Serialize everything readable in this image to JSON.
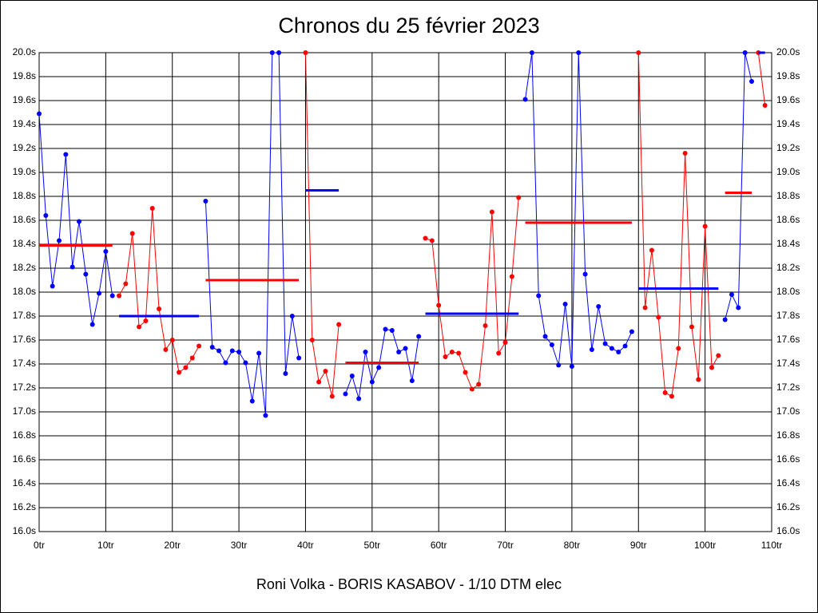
{
  "chart_data": {
    "type": "line",
    "title": "Chronos du 25 février 2023",
    "xlabel": "Roni Volka - BORIS KASABOV - 1/10 DTM elec",
    "xlim": [
      0,
      110
    ],
    "xticks": [
      {
        "value": 0,
        "label": "0tr"
      },
      {
        "value": 10,
        "label": "10tr"
      },
      {
        "value": 20,
        "label": "20tr"
      },
      {
        "value": 30,
        "label": "30tr"
      },
      {
        "value": 40,
        "label": "40tr"
      },
      {
        "value": 50,
        "label": "50tr"
      },
      {
        "value": 60,
        "label": "60tr"
      },
      {
        "value": 70,
        "label": "70tr"
      },
      {
        "value": 80,
        "label": "80tr"
      },
      {
        "value": 90,
        "label": "90tr"
      },
      {
        "value": 100,
        "label": "100tr"
      },
      {
        "value": 110,
        "label": "110tr"
      }
    ],
    "ylim": [
      16.0,
      20.0
    ],
    "yticks": [
      {
        "value": 16.0,
        "label": "16.0s"
      },
      {
        "value": 16.2,
        "label": "16.2s"
      },
      {
        "value": 16.4,
        "label": "16.4s"
      },
      {
        "value": 16.6,
        "label": "16.6s"
      },
      {
        "value": 16.8,
        "label": "16.8s"
      },
      {
        "value": 17.0,
        "label": "17.0s"
      },
      {
        "value": 17.2,
        "label": "17.2s"
      },
      {
        "value": 17.4,
        "label": "17.4s"
      },
      {
        "value": 17.6,
        "label": "17.6s"
      },
      {
        "value": 17.8,
        "label": "17.8s"
      },
      {
        "value": 18.0,
        "label": "18.0s"
      },
      {
        "value": 18.2,
        "label": "18.2s"
      },
      {
        "value": 18.4,
        "label": "18.4s"
      },
      {
        "value": 18.6,
        "label": "18.6s"
      },
      {
        "value": 18.8,
        "label": "18.8s"
      },
      {
        "value": 19.0,
        "label": "19.0s"
      },
      {
        "value": 19.2,
        "label": "19.2s"
      },
      {
        "value": 19.4,
        "label": "19.4s"
      },
      {
        "value": 19.6,
        "label": "19.6s"
      },
      {
        "value": 19.8,
        "label": "19.8s"
      },
      {
        "value": 20.0,
        "label": "20.0s"
      }
    ],
    "grid": true,
    "series": [
      {
        "color": "#0000ff",
        "x": [
          0,
          1,
          2,
          3,
          4,
          5,
          6,
          7,
          8,
          9,
          10,
          11
        ],
        "values": [
          19.49,
          18.64,
          18.05,
          18.43,
          19.15,
          18.21,
          18.59,
          18.15,
          17.73,
          17.99,
          18.34,
          17.97
        ]
      },
      {
        "color": "#ff0000",
        "x": [
          12,
          13,
          14,
          15,
          16,
          17,
          18,
          19,
          20,
          21,
          22,
          23,
          24
        ],
        "values": [
          17.97,
          18.07,
          18.49,
          17.71,
          17.76,
          18.7,
          17.86,
          17.52,
          17.6,
          17.33,
          17.37,
          17.45,
          17.55
        ]
      },
      {
        "color": "#0000ff",
        "x": [
          25,
          26,
          27,
          28,
          29,
          30,
          31,
          32,
          33,
          34,
          35,
          36,
          37,
          38,
          39
        ],
        "values": [
          18.76,
          17.54,
          17.51,
          17.41,
          17.51,
          17.5,
          17.41,
          17.09,
          17.49,
          16.97,
          20.0,
          20.0,
          17.32,
          17.8,
          17.45
        ]
      },
      {
        "color": "#ff0000",
        "x": [
          40,
          41,
          42,
          43,
          44,
          45
        ],
        "values": [
          20.0,
          17.6,
          17.25,
          17.34,
          17.13,
          17.73
        ]
      },
      {
        "color": "#0000ff",
        "x": [
          46,
          47,
          48,
          49,
          50,
          51,
          52,
          53,
          54,
          55,
          56,
          57
        ],
        "values": [
          17.15,
          17.3,
          17.11,
          17.5,
          17.25,
          17.37,
          17.69,
          17.68,
          17.5,
          17.53,
          17.26,
          17.63
        ]
      },
      {
        "color": "#ff0000",
        "x": [
          58,
          59,
          60,
          61,
          62,
          63,
          64,
          65,
          66,
          67,
          68,
          69,
          70,
          71,
          72
        ],
        "values": [
          18.45,
          18.43,
          17.89,
          17.46,
          17.5,
          17.49,
          17.33,
          17.19,
          17.23,
          17.72,
          18.67,
          17.49,
          17.58,
          18.13,
          18.79
        ]
      },
      {
        "color": "#0000ff",
        "x": [
          73,
          74,
          75,
          76,
          77,
          78,
          79,
          80,
          81,
          82,
          83,
          84,
          85,
          86,
          87,
          88,
          89
        ],
        "values": [
          19.61,
          20.0,
          17.97,
          17.63,
          17.56,
          17.39,
          17.9,
          17.38,
          20.0,
          18.15,
          17.52,
          17.88,
          17.57,
          17.53,
          17.5,
          17.55,
          17.67
        ]
      },
      {
        "color": "#ff0000",
        "x": [
          90,
          91,
          92,
          93,
          94,
          95,
          96,
          97,
          98,
          99,
          100,
          101,
          102
        ],
        "values": [
          20.0,
          17.87,
          18.35,
          17.79,
          17.16,
          17.13,
          17.53,
          19.16,
          17.71,
          17.27,
          18.55,
          17.37,
          17.47
        ]
      },
      {
        "color": "#0000ff",
        "x": [
          103,
          104,
          105,
          106,
          107
        ],
        "values": [
          17.77,
          17.98,
          17.87,
          20.0,
          19.76
        ]
      },
      {
        "color": "#ff0000",
        "x": [
          108,
          109
        ],
        "values": [
          20.0,
          19.56
        ]
      }
    ],
    "averages": [
      {
        "color": "#ff0000",
        "x": [
          0,
          11
        ],
        "value": 18.39
      },
      {
        "color": "#0000ff",
        "x": [
          12,
          24
        ],
        "value": 17.8
      },
      {
        "color": "#ff0000",
        "x": [
          25,
          39
        ],
        "value": 18.1
      },
      {
        "color": "#0000ff",
        "x": [
          40,
          45
        ],
        "value": 18.85
      },
      {
        "color": "#ff0000",
        "x": [
          46,
          57
        ],
        "value": 17.41
      },
      {
        "color": "#0000ff",
        "x": [
          58,
          72
        ],
        "value": 17.82
      },
      {
        "color": "#ff0000",
        "x": [
          73,
          89
        ],
        "value": 18.58
      },
      {
        "color": "#0000ff",
        "x": [
          90,
          102
        ],
        "value": 18.03
      },
      {
        "color": "#ff0000",
        "x": [
          103,
          107
        ],
        "value": 18.83
      },
      {
        "color": "#0000ff",
        "x": [
          108,
          109
        ],
        "value": 20.0
      }
    ]
  }
}
